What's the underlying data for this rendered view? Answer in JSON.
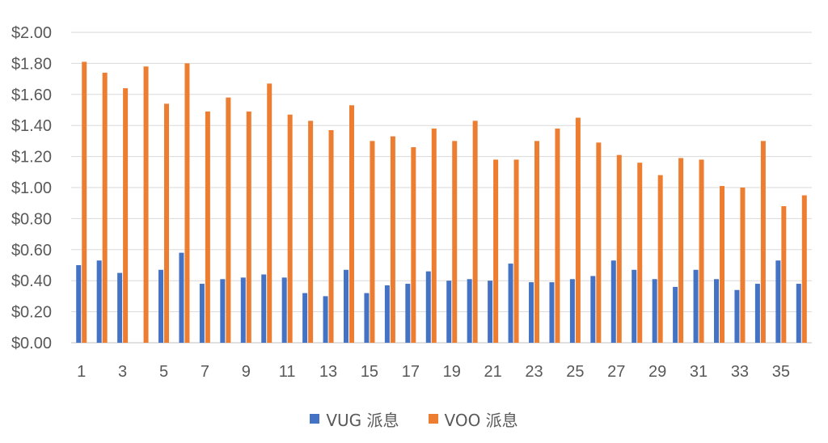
{
  "chart_data": {
    "type": "bar",
    "categories": [
      "1",
      "2",
      "3",
      "4",
      "5",
      "6",
      "7",
      "8",
      "9",
      "10",
      "11",
      "12",
      "13",
      "14",
      "15",
      "16",
      "17",
      "18",
      "19",
      "20",
      "21",
      "22",
      "23",
      "24",
      "25",
      "26",
      "27",
      "28",
      "29",
      "30",
      "31",
      "32",
      "33",
      "34",
      "35",
      "36"
    ],
    "x_tick_labels": [
      "1",
      "3",
      "5",
      "7",
      "9",
      "11",
      "13",
      "15",
      "17",
      "19",
      "21",
      "23",
      "25",
      "27",
      "29",
      "31",
      "33",
      "35"
    ],
    "y_tick_labels": [
      "$0.00",
      "$0.20",
      "$0.40",
      "$0.60",
      "$0.80",
      "$1.00",
      "$1.20",
      "$1.40",
      "$1.60",
      "$1.80",
      "$2.00"
    ],
    "ylim": [
      0,
      2.0
    ],
    "grid": true,
    "legend_position": "bottom",
    "series": [
      {
        "name": "VUG 派息",
        "color": "#4472C4",
        "values": [
          0.5,
          0.53,
          0.45,
          0,
          0.47,
          0.58,
          0.38,
          0.41,
          0.42,
          0.44,
          0.42,
          0.32,
          0.3,
          0.47,
          0.32,
          0.37,
          0.38,
          0.46,
          0.4,
          0.41,
          0.4,
          0.51,
          0.39,
          0.39,
          0.41,
          0.43,
          0.53,
          0.47,
          0.41,
          0.36,
          0.47,
          0.41,
          0.34,
          0.38,
          0.53,
          0.38
        ]
      },
      {
        "name": "VOO 派息",
        "color": "#ED7D31",
        "values": [
          1.81,
          1.74,
          1.64,
          1.78,
          1.54,
          1.8,
          1.49,
          1.58,
          1.49,
          1.67,
          1.47,
          1.43,
          1.37,
          1.53,
          1.3,
          1.33,
          1.26,
          1.38,
          1.3,
          1.43,
          1.18,
          1.18,
          1.3,
          1.38,
          1.45,
          1.29,
          1.21,
          1.16,
          1.08,
          1.19,
          1.18,
          1.01,
          1.0,
          1.3,
          0.88,
          0.95
        ]
      }
    ]
  }
}
